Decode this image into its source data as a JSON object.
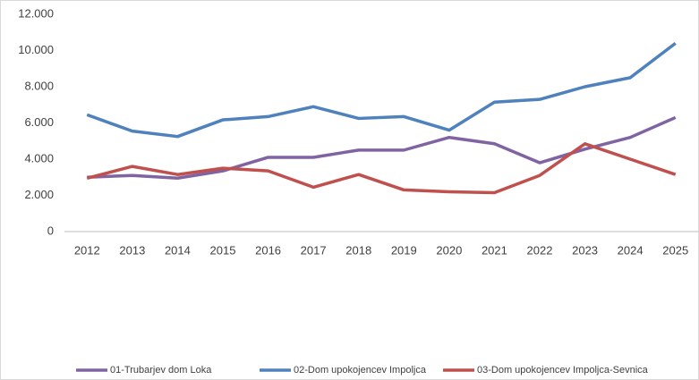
{
  "chart_data": {
    "type": "line",
    "categories": [
      "2012",
      "2013",
      "2014",
      "2015",
      "2016",
      "2017",
      "2018",
      "2019",
      "2020",
      "2021",
      "2022",
      "2023",
      "2024",
      "2025"
    ],
    "series": [
      {
        "name": "01-Trubarjev dom Loka",
        "color": "#8064a2",
        "values": [
          3000,
          3100,
          2950,
          3350,
          4100,
          4100,
          4500,
          4500,
          5200,
          4850,
          3800,
          4550,
          5200,
          6300
        ]
      },
      {
        "name": "02-Dom upokojencev Impoljca",
        "color": "#4f81bd",
        "values": [
          6450,
          5550,
          5250,
          6170,
          6350,
          6900,
          6250,
          6350,
          5600,
          7150,
          7300,
          8000,
          8500,
          10400
        ]
      },
      {
        "name": "03-Dom upokojencev Impoljca-Sevnica",
        "color": "#c0504d",
        "values": [
          2950,
          3600,
          3150,
          3500,
          3350,
          2450,
          3150,
          2300,
          2200,
          2150,
          3100,
          4850,
          4000,
          3150
        ]
      }
    ],
    "ylim": [
      0,
      12000
    ],
    "yticks": [
      0,
      {
        "value": 2000,
        "label": "2.000"
      },
      {
        "value": 4000,
        "label": "4.000"
      },
      {
        "value": 6000,
        "label": "6.000"
      },
      {
        "value": 8000,
        "label": "8.000"
      },
      {
        "value": 10000,
        "label": "10.000"
      },
      {
        "value": 12000,
        "label": "12.000"
      }
    ],
    "grid": false,
    "legend": "bottom"
  }
}
